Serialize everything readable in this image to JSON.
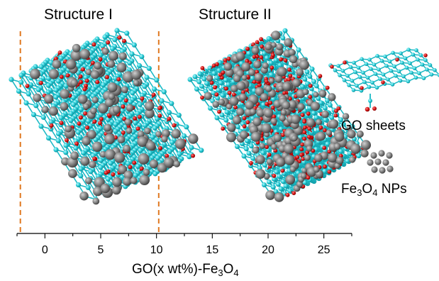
{
  "titles": {
    "structure_1": "Structure I",
    "structure_2": "Structure II"
  },
  "legend": {
    "go_sheets": "GO sheets",
    "np_prefix": "Fe",
    "np_sub1": "3",
    "np_mid": "O",
    "np_sub2": "4",
    "np_suffix": " NPs"
  },
  "axis": {
    "title_prefix": "GO(x wt%)-Fe",
    "title_sub1": "3",
    "title_mid": "O",
    "title_sub2": "4",
    "range": [
      -2.5,
      27.5
    ],
    "ticks": [
      "0",
      "5",
      "10",
      "15",
      "20",
      "25"
    ],
    "tick_values": [
      0,
      5,
      10,
      15,
      20,
      25
    ],
    "boundary_markers": [
      -2.2,
      10.2
    ]
  },
  "colors": {
    "carbon": "#1fc6d0",
    "oxygen": "#cc1010",
    "nanoparticle": "#7a7a7a",
    "boundary": "#e07820"
  },
  "icons": [
    "go-sheet-icon",
    "nanoparticle-cluster-icon"
  ]
}
